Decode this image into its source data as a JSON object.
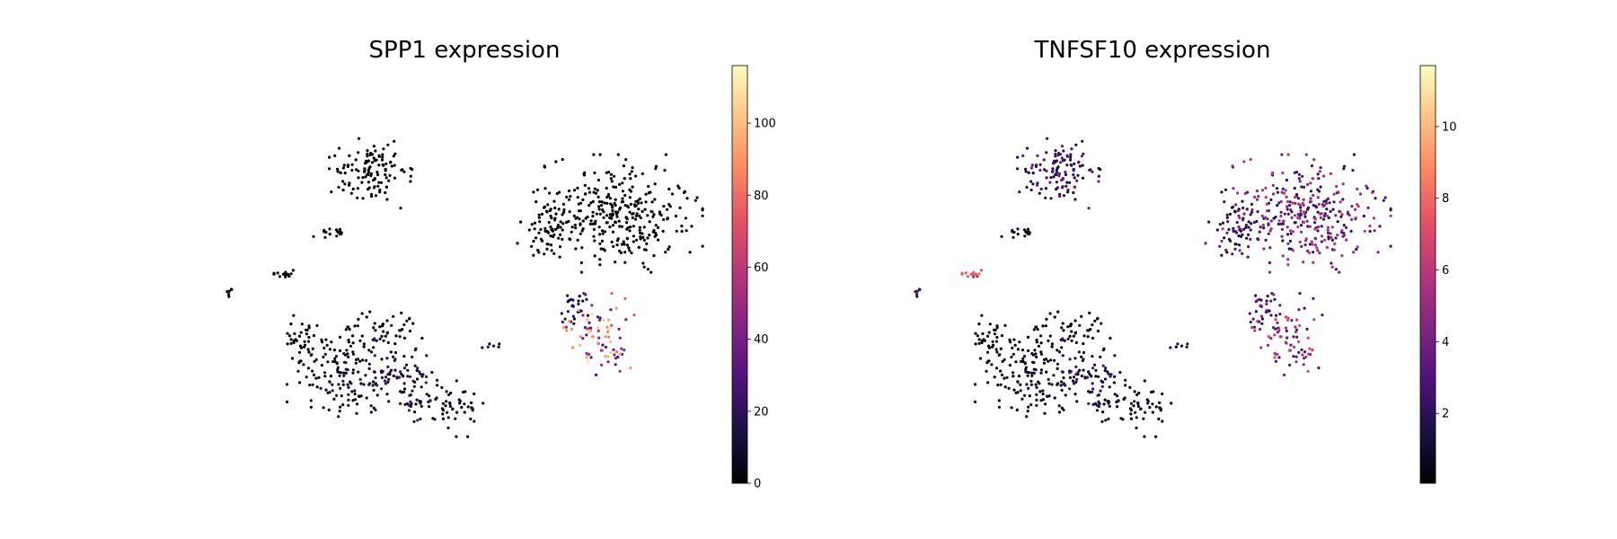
{
  "chart_data": [
    {
      "type": "scatter",
      "title": "SPP1 expression",
      "xlabel": "",
      "ylabel": "",
      "grid": false,
      "axes_visible": false,
      "colormap": "magma",
      "colorbar": {
        "min": 0,
        "max": 116,
        "ticks": [
          0,
          20,
          40,
          60,
          80,
          100
        ]
      },
      "clusters": [
        {
          "cx": 0.25,
          "cy": 0.7,
          "rx": 0.09,
          "ry": 0.14,
          "n": 140,
          "base": 2,
          "spread": 12,
          "hot": 0.05
        },
        {
          "cx": 0.37,
          "cy": 0.72,
          "rx": 0.07,
          "ry": 0.09,
          "n": 90,
          "base": 3,
          "spread": 25,
          "hot": 0.12
        },
        {
          "cx": 0.46,
          "cy": 0.79,
          "rx": 0.06,
          "ry": 0.07,
          "n": 60,
          "base": 2,
          "spread": 10,
          "hot": 0.08
        },
        {
          "cx": 0.17,
          "cy": 0.62,
          "rx": 0.04,
          "ry": 0.06,
          "n": 35,
          "base": 0,
          "spread": 3,
          "hot": 0.0
        },
        {
          "cx": 0.34,
          "cy": 0.59,
          "rx": 0.06,
          "ry": 0.05,
          "n": 45,
          "base": 0,
          "spread": 5,
          "hot": 0.0
        },
        {
          "cx": 0.76,
          "cy": 0.6,
          "rx": 0.06,
          "ry": 0.09,
          "n": 80,
          "base": 25,
          "spread": 85,
          "hot": 0.4
        },
        {
          "cx": 0.72,
          "cy": 0.53,
          "rx": 0.04,
          "ry": 0.04,
          "n": 25,
          "base": 5,
          "spread": 20,
          "hot": 0.1
        },
        {
          "cx": 0.8,
          "cy": 0.28,
          "rx": 0.14,
          "ry": 0.13,
          "n": 320,
          "base": 0,
          "spread": 2,
          "hot": 0.0
        },
        {
          "cx": 0.66,
          "cy": 0.32,
          "rx": 0.05,
          "ry": 0.08,
          "n": 60,
          "base": 0,
          "spread": 2,
          "hot": 0.0
        },
        {
          "cx": 0.31,
          "cy": 0.17,
          "rx": 0.07,
          "ry": 0.08,
          "n": 120,
          "base": 0,
          "spread": 2,
          "hot": 0.0
        },
        {
          "cx": 0.14,
          "cy": 0.44,
          "rx": 0.02,
          "ry": 0.01,
          "n": 16,
          "base": 0,
          "spread": 1,
          "hot": 0.0
        },
        {
          "cx": 0.23,
          "cy": 0.33,
          "rx": 0.03,
          "ry": 0.02,
          "n": 16,
          "base": 0,
          "spread": 1,
          "hot": 0.0
        },
        {
          "cx": 0.03,
          "cy": 0.49,
          "rx": 0.006,
          "ry": 0.01,
          "n": 6,
          "base": 0,
          "spread": 1,
          "hot": 0.0
        },
        {
          "cx": 0.55,
          "cy": 0.63,
          "rx": 0.02,
          "ry": 0.01,
          "n": 6,
          "base": 2,
          "spread": 20,
          "hot": 0.1
        }
      ]
    },
    {
      "type": "scatter",
      "title": "TNFSF10 expression",
      "xlabel": "",
      "ylabel": "",
      "grid": false,
      "axes_visible": false,
      "colormap": "magma",
      "colorbar": {
        "min": 0.05,
        "max": 11.7,
        "ticks": [
          2,
          4,
          6,
          8,
          10
        ]
      },
      "clusters": [
        {
          "cx": 0.25,
          "cy": 0.7,
          "rx": 0.09,
          "ry": 0.14,
          "n": 140,
          "base": 0.1,
          "spread": 1.0,
          "hot": 0.0
        },
        {
          "cx": 0.37,
          "cy": 0.72,
          "rx": 0.07,
          "ry": 0.09,
          "n": 90,
          "base": 0.2,
          "spread": 2.5,
          "hot": 0.15
        },
        {
          "cx": 0.46,
          "cy": 0.79,
          "rx": 0.06,
          "ry": 0.07,
          "n": 60,
          "base": 0.1,
          "spread": 1.0,
          "hot": 0.0
        },
        {
          "cx": 0.17,
          "cy": 0.62,
          "rx": 0.04,
          "ry": 0.06,
          "n": 35,
          "base": 0.0,
          "spread": 0.5,
          "hot": 0.0
        },
        {
          "cx": 0.34,
          "cy": 0.59,
          "rx": 0.06,
          "ry": 0.05,
          "n": 45,
          "base": 0.0,
          "spread": 0.6,
          "hot": 0.0
        },
        {
          "cx": 0.76,
          "cy": 0.6,
          "rx": 0.06,
          "ry": 0.09,
          "n": 80,
          "base": 2.5,
          "spread": 4.5,
          "hot": 0.3
        },
        {
          "cx": 0.72,
          "cy": 0.53,
          "rx": 0.04,
          "ry": 0.04,
          "n": 25,
          "base": 1.5,
          "spread": 3.0,
          "hot": 0.2
        },
        {
          "cx": 0.8,
          "cy": 0.28,
          "rx": 0.14,
          "ry": 0.13,
          "n": 320,
          "base": 1.5,
          "spread": 4.5,
          "hot": 0.3
        },
        {
          "cx": 0.66,
          "cy": 0.32,
          "rx": 0.05,
          "ry": 0.08,
          "n": 60,
          "base": 1.0,
          "spread": 3.0,
          "hot": 0.15
        },
        {
          "cx": 0.31,
          "cy": 0.17,
          "rx": 0.07,
          "ry": 0.08,
          "n": 120,
          "base": 1.0,
          "spread": 3.0,
          "hot": 0.1
        },
        {
          "cx": 0.14,
          "cy": 0.44,
          "rx": 0.02,
          "ry": 0.01,
          "n": 16,
          "base": 5.0,
          "spread": 3.0,
          "hot": 0.5
        },
        {
          "cx": 0.23,
          "cy": 0.33,
          "rx": 0.03,
          "ry": 0.02,
          "n": 16,
          "base": 0.3,
          "spread": 1.5,
          "hot": 0.0
        },
        {
          "cx": 0.03,
          "cy": 0.49,
          "rx": 0.006,
          "ry": 0.01,
          "n": 6,
          "base": 2.0,
          "spread": 1.0,
          "hot": 0.0
        },
        {
          "cx": 0.55,
          "cy": 0.63,
          "rx": 0.02,
          "ry": 0.01,
          "n": 6,
          "base": 0.5,
          "spread": 2.0,
          "hot": 0.0
        }
      ]
    }
  ]
}
